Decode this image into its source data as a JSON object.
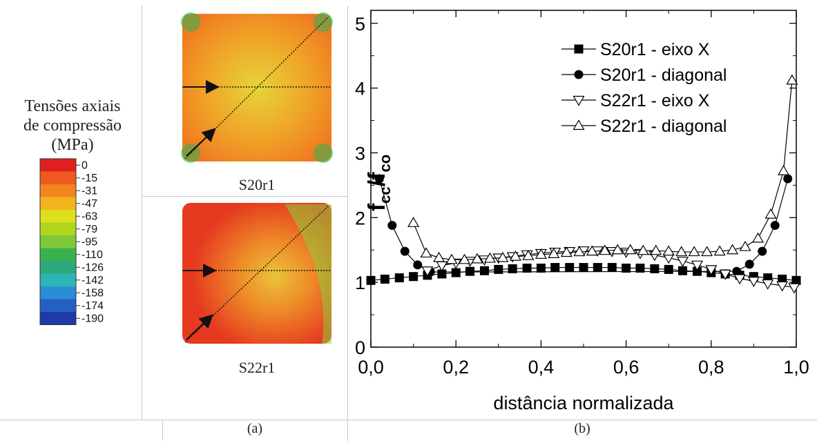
{
  "panel_a": {
    "legend_title_lines": [
      "Tensões axiais",
      "de compressão",
      "(MPa)"
    ],
    "colorbar": {
      "labels": [
        "0",
        "-15",
        "-31",
        "-47",
        "-63",
        "-79",
        "-95",
        "-110",
        "-126",
        "-142",
        "-158",
        "-174",
        "-190"
      ],
      "colors": [
        "#e02020",
        "#ef5a1e",
        "#f1861f",
        "#f1b41d",
        "#dfdf1c",
        "#b3d41f",
        "#7fc83a",
        "#3bb04e",
        "#2ca97a",
        "#2bb5b5",
        "#2a8ed6",
        "#245fc4",
        "#1d3aa8"
      ]
    },
    "specimens": [
      {
        "label": "S20r1",
        "fill": "#f07a22",
        "center": "#e6d43a"
      },
      {
        "label": "S22r1",
        "fill": "#e53a1f",
        "center": "#e9c43a"
      }
    ],
    "caption": "(a)"
  },
  "panel_b": {
    "caption": "(b)",
    "chart_data": {
      "type": "line",
      "xlabel": "distância normalizada",
      "ylabel_main": "f",
      "ylabel_sub1": "cc",
      "ylabel_sep": "/f",
      "ylabel_sub2": "co",
      "xlim": [
        0,
        1
      ],
      "ylim": [
        0,
        5.2
      ],
      "xticks": [
        0.0,
        0.2,
        0.4,
        0.6,
        0.8,
        1.0
      ],
      "xtick_labels": [
        "0,0",
        "0,2",
        "0,4",
        "0,6",
        "0,8",
        "1,0"
      ],
      "yticks": [
        0,
        1,
        2,
        3,
        4,
        5
      ],
      "ytick_labels": [
        "0",
        "1",
        "2",
        "3",
        "4",
        "5"
      ],
      "legend_position": "top-right",
      "series": [
        {
          "name": "S20r1 - eixo X",
          "marker": "square",
          "x": [
            0.0,
            0.033,
            0.067,
            0.1,
            0.133,
            0.167,
            0.2,
            0.233,
            0.267,
            0.3,
            0.333,
            0.367,
            0.4,
            0.433,
            0.467,
            0.5,
            0.533,
            0.567,
            0.6,
            0.633,
            0.667,
            0.7,
            0.733,
            0.767,
            0.8,
            0.833,
            0.867,
            0.9,
            0.933,
            0.967,
            1.0
          ],
          "y": [
            1.03,
            1.05,
            1.07,
            1.09,
            1.11,
            1.13,
            1.15,
            1.17,
            1.18,
            1.2,
            1.21,
            1.22,
            1.22,
            1.23,
            1.23,
            1.23,
            1.23,
            1.23,
            1.22,
            1.22,
            1.21,
            1.2,
            1.18,
            1.17,
            1.15,
            1.13,
            1.11,
            1.09,
            1.07,
            1.05,
            1.03
          ]
        },
        {
          "name": "S20r1 - diagonal",
          "marker": "circle",
          "x": [
            0.02,
            0.05,
            0.08,
            0.11,
            0.14,
            0.86,
            0.89,
            0.92,
            0.95,
            0.98
          ],
          "y": [
            2.6,
            1.88,
            1.48,
            1.27,
            1.16,
            1.17,
            1.28,
            1.48,
            1.88,
            2.6
          ]
        },
        {
          "name": "S22r1 - eixo X",
          "marker": "triangle-down",
          "x": [
            0.133,
            0.167,
            0.2,
            0.233,
            0.267,
            0.3,
            0.333,
            0.367,
            0.4,
            0.433,
            0.467,
            0.5,
            0.533,
            0.567,
            0.6,
            0.633,
            0.667,
            0.7,
            0.733,
            0.767,
            0.8,
            0.833,
            0.867,
            0.9,
            0.933,
            0.967,
            0.995
          ],
          "y": [
            1.18,
            1.26,
            1.3,
            1.33,
            1.35,
            1.38,
            1.4,
            1.43,
            1.45,
            1.47,
            1.48,
            1.49,
            1.49,
            1.48,
            1.47,
            1.45,
            1.42,
            1.38,
            1.33,
            1.27,
            1.2,
            1.13,
            1.06,
            1.02,
            0.98,
            0.95,
            0.92
          ]
        },
        {
          "name": "S22r1 - diagonal",
          "marker": "triangle-up",
          "x": [
            0.1,
            0.13,
            0.16,
            0.19,
            0.22,
            0.25,
            0.28,
            0.31,
            0.34,
            0.37,
            0.4,
            0.43,
            0.46,
            0.49,
            0.52,
            0.55,
            0.58,
            0.61,
            0.64,
            0.67,
            0.7,
            0.73,
            0.76,
            0.79,
            0.82,
            0.85,
            0.88,
            0.91,
            0.94,
            0.97,
            0.99
          ],
          "y": [
            1.92,
            1.45,
            1.38,
            1.35,
            1.35,
            1.36,
            1.37,
            1.38,
            1.4,
            1.41,
            1.43,
            1.44,
            1.46,
            1.47,
            1.48,
            1.49,
            1.5,
            1.5,
            1.49,
            1.49,
            1.48,
            1.47,
            1.47,
            1.47,
            1.48,
            1.5,
            1.55,
            1.68,
            2.05,
            2.72,
            4.12
          ]
        }
      ]
    }
  }
}
